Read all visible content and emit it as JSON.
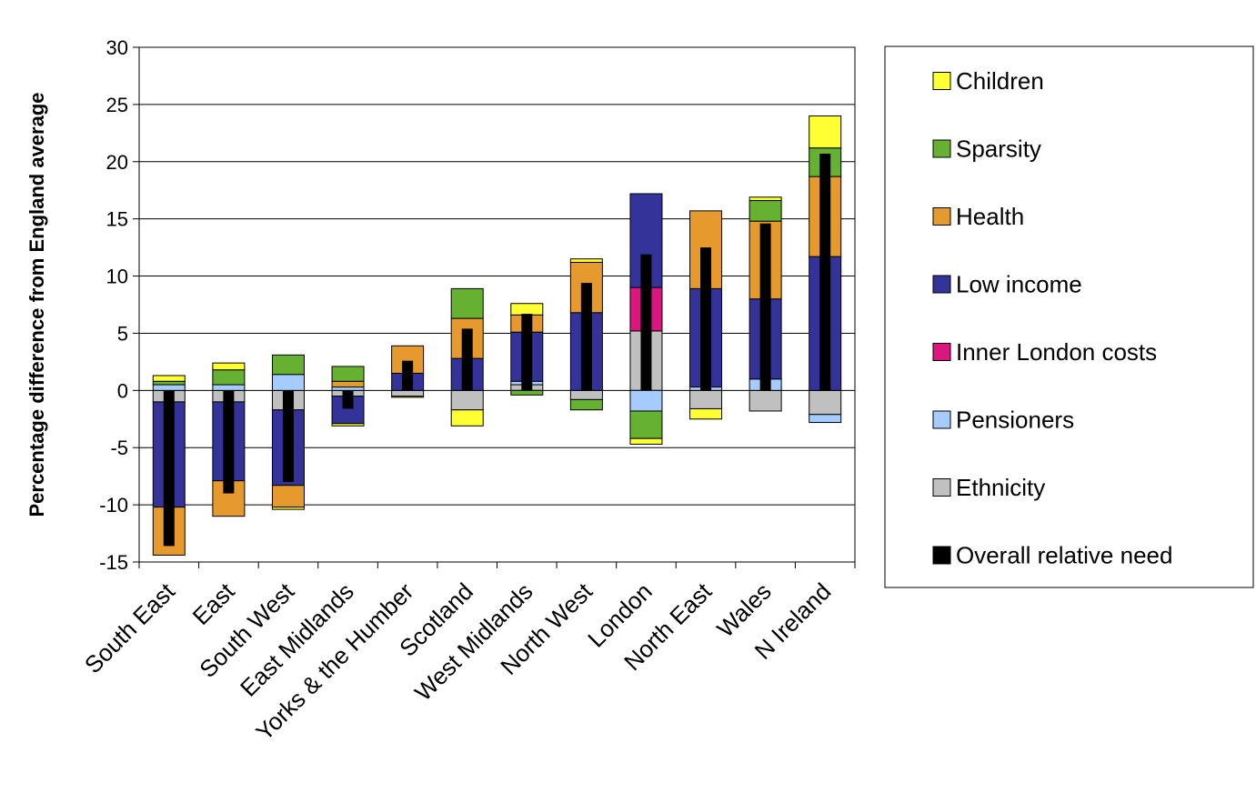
{
  "chart_data": {
    "type": "bar",
    "stacked": true,
    "title": "",
    "xlabel": "",
    "ylabel": "Percentage difference from England average",
    "ylim": [
      -15,
      30
    ],
    "yticks": [
      30,
      25,
      20,
      15,
      10,
      5,
      0,
      -5,
      -10,
      -15
    ],
    "grid": true,
    "legend_position": "right",
    "categories": [
      "South East",
      "East",
      "South West",
      "East Midlands",
      "Yorks & the Humber",
      "Scotland",
      "West Midlands",
      "North West",
      "London",
      "North East",
      "Wales",
      "N Ireland"
    ],
    "overall": {
      "name": "Overall relative need",
      "color": "#000000",
      "values": [
        -13.6,
        -9.0,
        -8.0,
        -1.6,
        2.6,
        5.4,
        6.7,
        9.4,
        11.9,
        12.5,
        14.6,
        20.7
      ]
    },
    "legend": [
      {
        "name": "Children",
        "color": "#ffff33"
      },
      {
        "name": "Sparsity",
        "color": "#66b032"
      },
      {
        "name": "Health",
        "color": "#e69a2e"
      },
      {
        "name": "Low income",
        "color": "#33339a"
      },
      {
        "name": "Inner London costs",
        "color": "#d9177f"
      },
      {
        "name": "Pensioners",
        "color": "#a6ccff"
      },
      {
        "name": "Ethnicity",
        "color": "#c0c0c0"
      },
      {
        "name": "Overall relative need",
        "color": "#000000"
      }
    ],
    "series": [
      {
        "name": "Ethnicity",
        "color": "#c0c0c0",
        "values": [
          -1.0,
          -1.0,
          -1.7,
          -0.5,
          -0.5,
          -1.7,
          0.5,
          -0.8,
          5.2,
          -1.6,
          -1.8,
          -2.1
        ]
      },
      {
        "name": "Pensioners",
        "color": "#a6ccff",
        "values": [
          0.5,
          0.5,
          1.4,
          0.3,
          0.0,
          0.0,
          0.3,
          0.0,
          -1.8,
          0.3,
          1.0,
          -0.7
        ]
      },
      {
        "name": "Inner London costs",
        "color": "#d9177f",
        "values": [
          0,
          0,
          0,
          0,
          0,
          0,
          0,
          0,
          3.8,
          0,
          0,
          0
        ]
      },
      {
        "name": "Low income",
        "color": "#33339a",
        "values": [
          -9.2,
          -6.9,
          -6.6,
          -2.4,
          1.5,
          2.8,
          4.3,
          6.8,
          8.2,
          8.6,
          7.0,
          11.7
        ]
      },
      {
        "name": "Health",
        "color": "#e69a2e",
        "values": [
          -4.2,
          -3.1,
          -1.9,
          0.5,
          2.4,
          3.5,
          1.5,
          4.4,
          0.0,
          6.8,
          6.8,
          7.0
        ]
      },
      {
        "name": "Sparsity",
        "color": "#66b032",
        "values": [
          0.3,
          1.3,
          1.7,
          1.3,
          0.0,
          2.6,
          -0.4,
          -0.9,
          -2.4,
          0.0,
          1.8,
          2.5
        ]
      },
      {
        "name": "Children",
        "color": "#ffff33",
        "values": [
          0.5,
          0.6,
          -0.2,
          -0.2,
          -0.1,
          -1.4,
          1.0,
          0.3,
          -0.5,
          -0.9,
          0.3,
          2.8
        ]
      }
    ]
  }
}
